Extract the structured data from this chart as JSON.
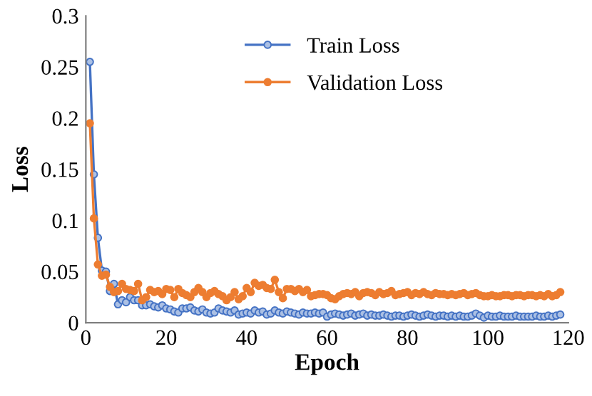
{
  "chart_data": {
    "type": "line",
    "xlabel": "Epoch",
    "ylabel": "Loss",
    "x": [
      1,
      2,
      3,
      4,
      5,
      6,
      7,
      8,
      9,
      10,
      11,
      12,
      13,
      14,
      15,
      16,
      17,
      18,
      19,
      20,
      21,
      22,
      23,
      24,
      25,
      26,
      27,
      28,
      29,
      30,
      31,
      32,
      33,
      34,
      35,
      36,
      37,
      38,
      39,
      40,
      41,
      42,
      43,
      44,
      45,
      46,
      47,
      48,
      49,
      50,
      51,
      52,
      53,
      54,
      55,
      56,
      57,
      58,
      59,
      60,
      61,
      62,
      63,
      64,
      65,
      66,
      67,
      68,
      69,
      70,
      71,
      72,
      73,
      74,
      75,
      76,
      77,
      78,
      79,
      80,
      81,
      82,
      83,
      84,
      85,
      86,
      87,
      88,
      89,
      90,
      91,
      92,
      93,
      94,
      95,
      96,
      97,
      98,
      99,
      100,
      101,
      102,
      103,
      104,
      105,
      106,
      107,
      108,
      109,
      110,
      111,
      112,
      113,
      114,
      115,
      116,
      117,
      118
    ],
    "series": [
      {
        "name": "Train Loss",
        "color": "#4472c4",
        "values": [
          0.255,
          0.145,
          0.083,
          0.051,
          0.05,
          0.031,
          0.038,
          0.018,
          0.022,
          0.02,
          0.025,
          0.022,
          0.022,
          0.017,
          0.017,
          0.018,
          0.016,
          0.015,
          0.017,
          0.014,
          0.013,
          0.011,
          0.01,
          0.014,
          0.014,
          0.015,
          0.012,
          0.011,
          0.013,
          0.01,
          0.009,
          0.01,
          0.014,
          0.012,
          0.011,
          0.01,
          0.012,
          0.008,
          0.009,
          0.01,
          0.009,
          0.012,
          0.01,
          0.011,
          0.008,
          0.009,
          0.012,
          0.01,
          0.009,
          0.011,
          0.01,
          0.009,
          0.008,
          0.01,
          0.009,
          0.009,
          0.01,
          0.009,
          0.01,
          0.006,
          0.008,
          0.009,
          0.008,
          0.007,
          0.008,
          0.009,
          0.007,
          0.008,
          0.009,
          0.007,
          0.008,
          0.007,
          0.007,
          0.008,
          0.007,
          0.006,
          0.007,
          0.007,
          0.006,
          0.007,
          0.008,
          0.007,
          0.006,
          0.007,
          0.008,
          0.007,
          0.006,
          0.007,
          0.007,
          0.006,
          0.007,
          0.006,
          0.007,
          0.006,
          0.006,
          0.007,
          0.009,
          0.007,
          0.005,
          0.007,
          0.006,
          0.006,
          0.007,
          0.006,
          0.006,
          0.006,
          0.007,
          0.006,
          0.006,
          0.006,
          0.006,
          0.007,
          0.006,
          0.006,
          0.007,
          0.006,
          0.007,
          0.008
        ]
      },
      {
        "name": "Validation Loss",
        "color": "#ed7d31",
        "values": [
          0.195,
          0.102,
          0.057,
          0.046,
          0.047,
          0.035,
          0.03,
          0.031,
          0.038,
          0.033,
          0.032,
          0.031,
          0.038,
          0.022,
          0.025,
          0.032,
          0.03,
          0.031,
          0.028,
          0.033,
          0.032,
          0.025,
          0.033,
          0.029,
          0.027,
          0.025,
          0.03,
          0.034,
          0.03,
          0.025,
          0.029,
          0.031,
          0.028,
          0.026,
          0.022,
          0.025,
          0.03,
          0.023,
          0.026,
          0.034,
          0.03,
          0.039,
          0.036,
          0.037,
          0.034,
          0.033,
          0.042,
          0.03,
          0.024,
          0.033,
          0.033,
          0.031,
          0.033,
          0.03,
          0.032,
          0.026,
          0.027,
          0.028,
          0.028,
          0.027,
          0.024,
          0.023,
          0.026,
          0.028,
          0.029,
          0.028,
          0.03,
          0.026,
          0.029,
          0.03,
          0.029,
          0.027,
          0.03,
          0.028,
          0.029,
          0.031,
          0.027,
          0.028,
          0.029,
          0.03,
          0.027,
          0.029,
          0.028,
          0.03,
          0.028,
          0.027,
          0.029,
          0.028,
          0.028,
          0.027,
          0.028,
          0.027,
          0.028,
          0.029,
          0.027,
          0.028,
          0.029,
          0.027,
          0.026,
          0.026,
          0.027,
          0.026,
          0.026,
          0.027,
          0.027,
          0.026,
          0.027,
          0.027,
          0.026,
          0.027,
          0.027,
          0.026,
          0.027,
          0.026,
          0.028,
          0.026,
          0.027,
          0.03
        ]
      }
    ],
    "xlim": [
      0,
      120
    ],
    "xticks": [
      0,
      20,
      40,
      60,
      80,
      100,
      120
    ],
    "ylim": [
      0,
      0.3
    ],
    "yticks": [
      0,
      0.05,
      0.1,
      0.15,
      0.2,
      0.25,
      0.3
    ],
    "grid": false,
    "legend": "top",
    "marker": "circle",
    "line_style": "solid"
  }
}
